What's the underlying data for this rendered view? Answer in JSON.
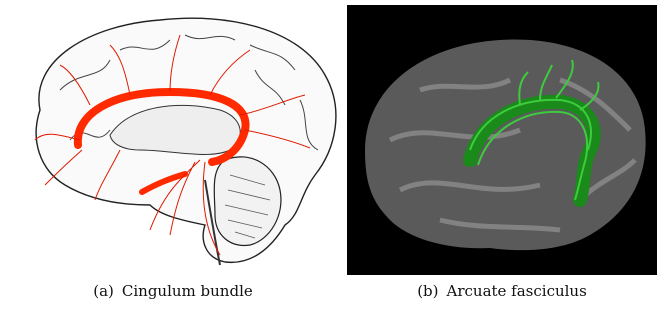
{
  "figure": {
    "subfigures": [
      {
        "label": "(a)",
        "caption": "Cingulum bundle"
      },
      {
        "label": "(b)",
        "caption": "Arcuate fasciculus"
      }
    ]
  }
}
